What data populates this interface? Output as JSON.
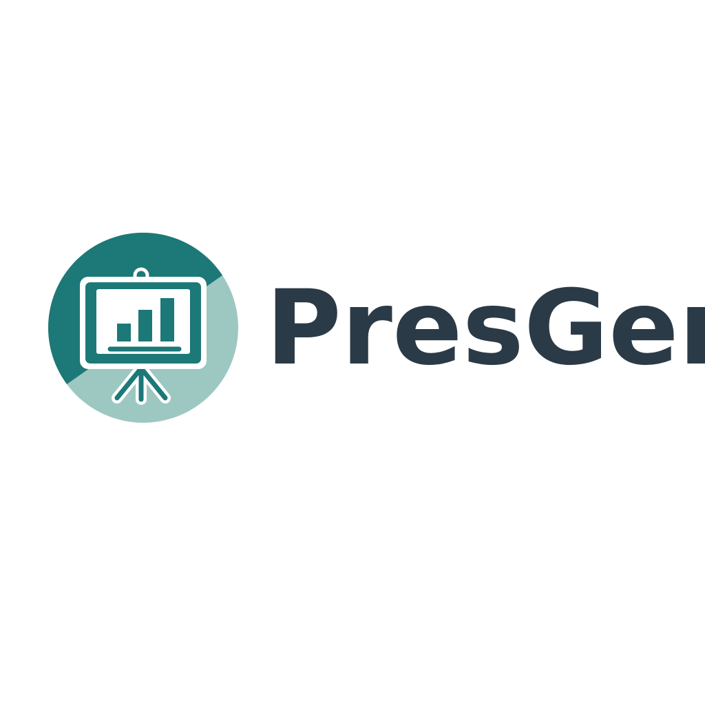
{
  "logo": {
    "text": "PresGen"
  }
}
